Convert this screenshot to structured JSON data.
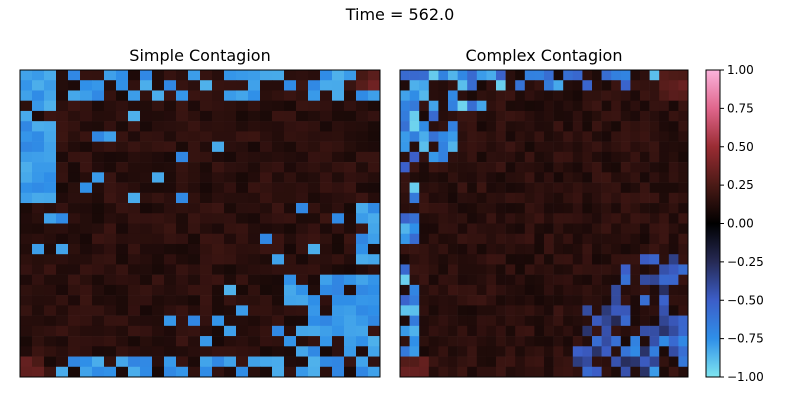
{
  "figure": {
    "title": "Time = 562.0"
  },
  "chart_data": [
    {
      "type": "heatmap",
      "title": "Simple Contagion",
      "grid_size": 30,
      "color_scale": [
        -1.0,
        1.0
      ],
      "xlabel": "",
      "ylabel": ""
    },
    {
      "type": "heatmap",
      "title": "Complex Contagion",
      "grid_size": 30,
      "color_scale": [
        -1.0,
        1.0
      ],
      "xlabel": "",
      "ylabel": ""
    }
  ],
  "colorbar": {
    "ticks": [
      {
        "value": 1.0,
        "label": "1.00"
      },
      {
        "value": 0.75,
        "label": "0.75"
      },
      {
        "value": 0.5,
        "label": "0.50"
      },
      {
        "value": 0.25,
        "label": "0.25"
      },
      {
        "value": 0.0,
        "label": "0.00"
      },
      {
        "value": -0.25,
        "label": "−0.25"
      },
      {
        "value": -0.5,
        "label": "−0.50"
      },
      {
        "value": -0.75,
        "label": "−0.75"
      },
      {
        "value": -1.0,
        "label": "−1.00"
      }
    ],
    "colors": [
      {
        "value": -1.0,
        "color": "#7fe6f0"
      },
      {
        "value": -0.75,
        "color": "#2f8fe8"
      },
      {
        "value": -0.5,
        "color": "#3c5ec8"
      },
      {
        "value": -0.25,
        "color": "#262a55"
      },
      {
        "value": 0.0,
        "color": "#000000"
      },
      {
        "value": 0.25,
        "color": "#4a1a16"
      },
      {
        "value": 0.5,
        "color": "#9a2c33"
      },
      {
        "value": 0.75,
        "color": "#e0668c"
      },
      {
        "value": 1.0,
        "color": "#fbb3dc"
      }
    ]
  }
}
